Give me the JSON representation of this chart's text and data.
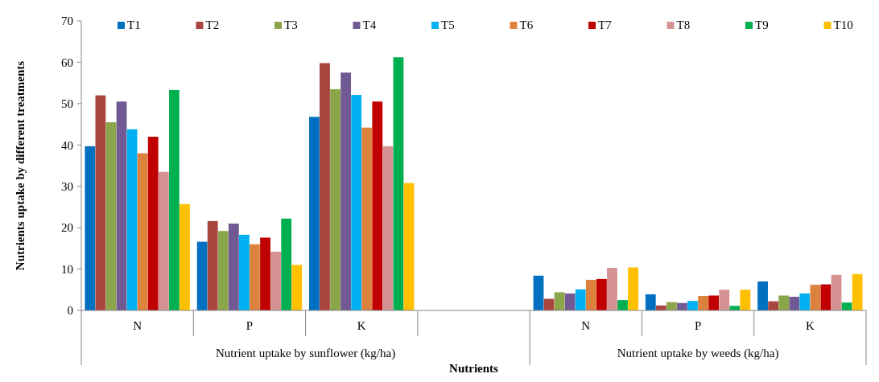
{
  "chart_data": {
    "type": "bar",
    "xlabel": "Nutrients",
    "ylabel": "Nutrients uptake by different treatments",
    "categories": [
      "N",
      "P",
      "K",
      null,
      "N",
      "P",
      "K"
    ],
    "annotations": [
      "Nutrient uptake by sunflower (kg/ha)",
      "Nutrient uptake by weeds (kg/ha)"
    ],
    "ylim": [
      0,
      70
    ],
    "yticks": [
      0,
      10,
      20,
      30,
      40,
      50,
      60,
      70
    ],
    "grid": false,
    "legend": "top",
    "series": [
      {
        "name": "T1",
        "color": "#0070c0",
        "values": [
          39.7,
          16.6,
          46.8,
          null,
          8.4,
          3.9,
          7.0
        ]
      },
      {
        "name": "T2",
        "color": "#a9443f",
        "values": [
          52.0,
          21.6,
          59.8,
          null,
          2.8,
          1.2,
          2.2
        ]
      },
      {
        "name": "T3",
        "color": "#8aa54a",
        "values": [
          45.5,
          19.2,
          53.5,
          null,
          4.4,
          2.0,
          3.6
        ]
      },
      {
        "name": "T4",
        "color": "#715a94",
        "values": [
          50.5,
          21.0,
          57.5,
          null,
          4.1,
          1.8,
          3.3
        ]
      },
      {
        "name": "T5",
        "color": "#00b0f0",
        "values": [
          43.8,
          18.3,
          52.1,
          null,
          5.1,
          2.3,
          4.1
        ]
      },
      {
        "name": "T6",
        "color": "#dc823d",
        "values": [
          38.0,
          16.0,
          44.2,
          null,
          7.4,
          3.5,
          6.2
        ]
      },
      {
        "name": "T7",
        "color": "#c00000",
        "values": [
          42.0,
          17.6,
          50.5,
          null,
          7.6,
          3.6,
          6.3
        ]
      },
      {
        "name": "T8",
        "color": "#d59292",
        "values": [
          33.5,
          14.2,
          39.7,
          null,
          10.3,
          5.0,
          8.6
        ]
      },
      {
        "name": "T9",
        "color": "#00b050",
        "values": [
          53.3,
          22.2,
          61.2,
          null,
          2.5,
          1.1,
          1.9
        ]
      },
      {
        "name": "T10",
        "color": "#ffc000",
        "values": [
          25.7,
          11.0,
          30.8,
          null,
          10.4,
          5.0,
          8.8
        ]
      }
    ]
  }
}
